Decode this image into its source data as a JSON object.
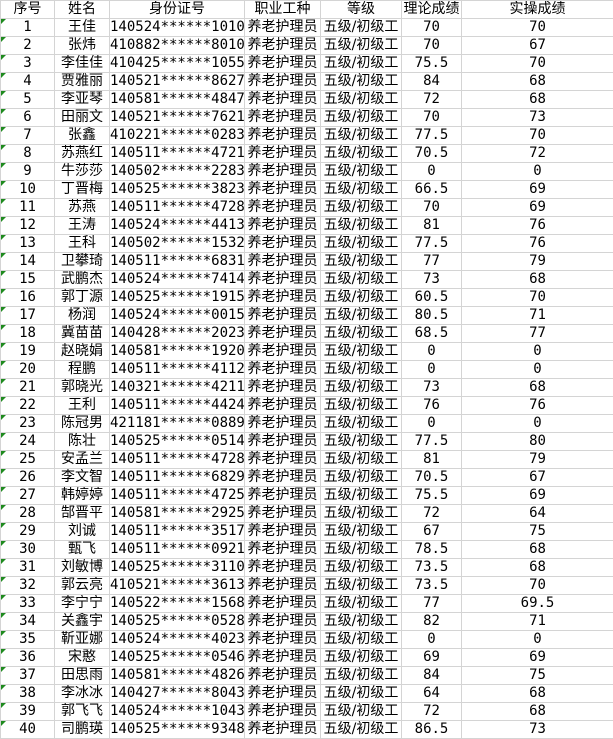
{
  "headers": [
    "序号",
    "姓名",
    "身份证号",
    "职业工种",
    "等级",
    "理论成绩",
    "实操成绩"
  ],
  "colors": {
    "grid": "#d4d4d4",
    "cell_marker": "#1e8a1e"
  },
  "rows": [
    [
      "1",
      "王佳",
      "140524******1010",
      "养老护理员",
      "五级/初级工",
      "70",
      "70"
    ],
    [
      "2",
      "张炜",
      "410882******8010",
      "养老护理员",
      "五级/初级工",
      "70",
      "67"
    ],
    [
      "3",
      "李佳佳",
      "410425******1055",
      "养老护理员",
      "五级/初级工",
      "75.5",
      "70"
    ],
    [
      "4",
      "贾雅丽",
      "140521******8627",
      "养老护理员",
      "五级/初级工",
      "84",
      "68"
    ],
    [
      "5",
      "李亚琴",
      "140581******4847",
      "养老护理员",
      "五级/初级工",
      "72",
      "68"
    ],
    [
      "6",
      "田丽文",
      "140521******7621",
      "养老护理员",
      "五级/初级工",
      "70",
      "73"
    ],
    [
      "7",
      "张鑫",
      "410221******0283",
      "养老护理员",
      "五级/初级工",
      "77.5",
      "70"
    ],
    [
      "8",
      "苏燕红",
      "140511******4721",
      "养老护理员",
      "五级/初级工",
      "70.5",
      "72"
    ],
    [
      "9",
      "牛莎莎",
      "140502******2283",
      "养老护理员",
      "五级/初级工",
      "0",
      "0"
    ],
    [
      "10",
      "丁晋梅",
      "140525******3823",
      "养老护理员",
      "五级/初级工",
      "66.5",
      "69"
    ],
    [
      "11",
      "苏燕",
      "140511******4728",
      "养老护理员",
      "五级/初级工",
      "70",
      "69"
    ],
    [
      "12",
      "王涛",
      "140524******4413",
      "养老护理员",
      "五级/初级工",
      "81",
      "76"
    ],
    [
      "13",
      "王科",
      "140502******1532",
      "养老护理员",
      "五级/初级工",
      "77.5",
      "76"
    ],
    [
      "14",
      "卫攀琦",
      "140511******6831",
      "养老护理员",
      "五级/初级工",
      "77",
      "79"
    ],
    [
      "15",
      "武鹏杰",
      "140524******7414",
      "养老护理员",
      "五级/初级工",
      "73",
      "68"
    ],
    [
      "16",
      "郭丁源",
      "140525******1915",
      "养老护理员",
      "五级/初级工",
      "60.5",
      "70"
    ],
    [
      "17",
      "杨润",
      "140524******0015",
      "养老护理员",
      "五级/初级工",
      "80.5",
      "71"
    ],
    [
      "18",
      "冀苗苗",
      "140428******2023",
      "养老护理员",
      "五级/初级工",
      "68.5",
      "77"
    ],
    [
      "19",
      "赵晓娟",
      "140581******1920",
      "养老护理员",
      "五级/初级工",
      "0",
      "0"
    ],
    [
      "20",
      "程鹏",
      "140511******4112",
      "养老护理员",
      "五级/初级工",
      "0",
      "0"
    ],
    [
      "21",
      "郭晓光",
      "140321******4211",
      "养老护理员",
      "五级/初级工",
      "73",
      "68"
    ],
    [
      "22",
      "王利",
      "140511******4424",
      "养老护理员",
      "五级/初级工",
      "76",
      "76"
    ],
    [
      "23",
      "陈冠男",
      "421181******0889",
      "养老护理员",
      "五级/初级工",
      "0",
      "0"
    ],
    [
      "24",
      "陈壮",
      "140525******0514",
      "养老护理员",
      "五级/初级工",
      "77.5",
      "80"
    ],
    [
      "25",
      "安孟兰",
      "140511******4728",
      "养老护理员",
      "五级/初级工",
      "81",
      "79"
    ],
    [
      "26",
      "李文智",
      "140511******6829",
      "养老护理员",
      "五级/初级工",
      "70.5",
      "67"
    ],
    [
      "27",
      "韩婷婷",
      "140511******4725",
      "养老护理员",
      "五级/初级工",
      "75.5",
      "69"
    ],
    [
      "28",
      "郜晋平",
      "140581******2925",
      "养老护理员",
      "五级/初级工",
      "72",
      "64"
    ],
    [
      "29",
      "刘诚",
      "140511******3517",
      "养老护理员",
      "五级/初级工",
      "67",
      "75"
    ],
    [
      "30",
      "甄飞",
      "140511******0921",
      "养老护理员",
      "五级/初级工",
      "78.5",
      "68"
    ],
    [
      "31",
      "刘敏博",
      "140525******3110",
      "养老护理员",
      "五级/初级工",
      "73.5",
      "68"
    ],
    [
      "32",
      "郭云亮",
      "410521******3613",
      "养老护理员",
      "五级/初级工",
      "73.5",
      "70"
    ],
    [
      "33",
      "李宁宁",
      "140522******1568",
      "养老护理员",
      "五级/初级工",
      "77",
      "69.5"
    ],
    [
      "34",
      "关鑫宇",
      "140525******0528",
      "养老护理员",
      "五级/初级工",
      "82",
      "71"
    ],
    [
      "35",
      "靳亚娜",
      "140524******4023",
      "养老护理员",
      "五级/初级工",
      "0",
      "0"
    ],
    [
      "36",
      "宋憨",
      "140525******0546",
      "养老护理员",
      "五级/初级工",
      "69",
      "69"
    ],
    [
      "37",
      "田思雨",
      "140581******4826",
      "养老护理员",
      "五级/初级工",
      "84",
      "75"
    ],
    [
      "38",
      "李冰冰",
      "140427******8043",
      "养老护理员",
      "五级/初级工",
      "64",
      "68"
    ],
    [
      "39",
      "郭飞飞",
      "140524******1043",
      "养老护理员",
      "五级/初级工",
      "72",
      "68"
    ],
    [
      "40",
      "司鹏瑛",
      "140525******9348",
      "养老护理员",
      "五级/初级工",
      "86.5",
      "73"
    ]
  ]
}
